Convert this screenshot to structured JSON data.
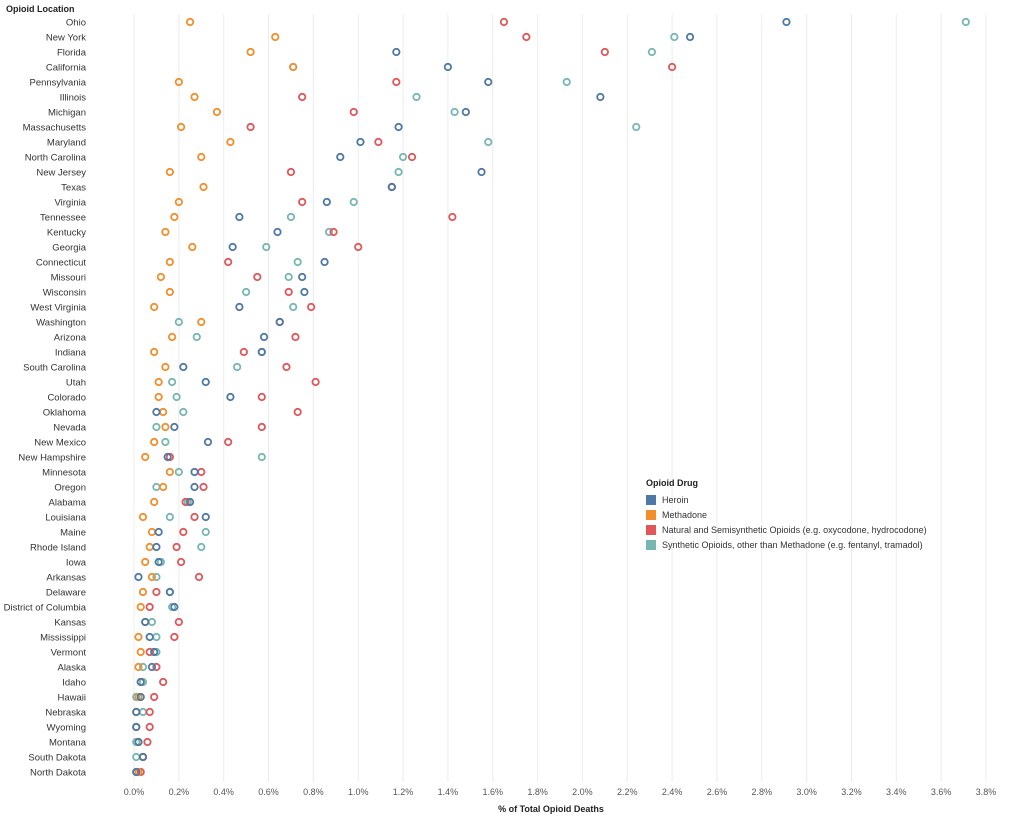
{
  "chart_data": {
    "type": "scatter",
    "row_header": "Opioid Location",
    "xlabel": "% of Total Opioid Deaths",
    "xlim": [
      0,
      3.8
    ],
    "x_ticks": [
      "0.0%",
      "0.2%",
      "0.4%",
      "0.6%",
      "0.8%",
      "1.0%",
      "1.2%",
      "1.4%",
      "1.6%",
      "1.8%",
      "2.0%",
      "2.2%",
      "2.4%",
      "2.6%",
      "2.8%",
      "3.0%",
      "3.2%",
      "3.4%",
      "3.6%",
      "3.8%"
    ],
    "grid": "vertical",
    "legend_title": "Opioid Drug",
    "series": [
      {
        "name": "Heroin",
        "color": "#4e79a7"
      },
      {
        "name": "Methadone",
        "color": "#f28e2b"
      },
      {
        "name": "Natural and Semisynthetic Opioids (e.g. oxycodone, hydrocodone)",
        "color": "#e15759"
      },
      {
        "name": "Synthetic Opioids, other than Methadone (e.g. fentanyl, tramadol)",
        "color": "#76b7b2"
      }
    ],
    "rows": [
      {
        "label": "Ohio",
        "values": [
          2.91,
          0.25,
          1.65,
          3.71
        ]
      },
      {
        "label": "New York",
        "values": [
          2.48,
          0.63,
          1.75,
          2.41
        ]
      },
      {
        "label": "Florida",
        "values": [
          1.17,
          0.52,
          2.1,
          2.31
        ]
      },
      {
        "label": "California",
        "values": [
          1.4,
          0.71,
          2.4,
          0.71
        ]
      },
      {
        "label": "Pennsylvania",
        "values": [
          1.58,
          0.2,
          1.17,
          1.93
        ]
      },
      {
        "label": "Illinois",
        "values": [
          2.08,
          0.27,
          0.75,
          1.26
        ]
      },
      {
        "label": "Michigan",
        "values": [
          1.48,
          0.37,
          0.98,
          1.43
        ]
      },
      {
        "label": "Massachusetts",
        "values": [
          1.18,
          0.21,
          0.52,
          2.24
        ]
      },
      {
        "label": "Maryland",
        "values": [
          1.01,
          0.43,
          1.09,
          1.58
        ]
      },
      {
        "label": "North Carolina",
        "values": [
          0.92,
          0.3,
          1.24,
          1.2
        ]
      },
      {
        "label": "New Jersey",
        "values": [
          1.55,
          0.16,
          0.7,
          1.18
        ]
      },
      {
        "label": "Texas",
        "values": [
          1.15,
          0.31,
          1.15,
          1.15
        ]
      },
      {
        "label": "Virginia",
        "values": [
          0.86,
          0.2,
          0.75,
          0.98
        ]
      },
      {
        "label": "Tennessee",
        "values": [
          0.47,
          0.18,
          1.42,
          0.7
        ]
      },
      {
        "label": "Kentucky",
        "values": [
          0.64,
          0.14,
          0.89,
          0.87
        ]
      },
      {
        "label": "Georgia",
        "values": [
          0.44,
          0.26,
          1.0,
          0.59
        ]
      },
      {
        "label": "Connecticut",
        "values": [
          0.85,
          0.16,
          0.42,
          0.73
        ]
      },
      {
        "label": "Missouri",
        "values": [
          0.75,
          0.12,
          0.55,
          0.69
        ]
      },
      {
        "label": "Wisconsin",
        "values": [
          0.76,
          0.16,
          0.69,
          0.5
        ]
      },
      {
        "label": "West Virginia",
        "values": [
          0.47,
          0.09,
          0.79,
          0.71
        ]
      },
      {
        "label": "Washington",
        "values": [
          0.65,
          0.3,
          0.65,
          0.2
        ]
      },
      {
        "label": "Arizona",
        "values": [
          0.58,
          0.17,
          0.72,
          0.28
        ]
      },
      {
        "label": "Indiana",
        "values": [
          0.57,
          0.09,
          0.49,
          0.57
        ]
      },
      {
        "label": "South Carolina",
        "values": [
          0.22,
          0.14,
          0.68,
          0.46
        ]
      },
      {
        "label": "Utah",
        "values": [
          0.32,
          0.11,
          0.81,
          0.17
        ]
      },
      {
        "label": "Colorado",
        "values": [
          0.43,
          0.11,
          0.57,
          0.19
        ]
      },
      {
        "label": "Oklahoma",
        "values": [
          0.1,
          0.13,
          0.73,
          0.22
        ]
      },
      {
        "label": "Nevada",
        "values": [
          0.18,
          0.14,
          0.57,
          0.1
        ]
      },
      {
        "label": "New Mexico",
        "values": [
          0.33,
          0.09,
          0.42,
          0.14
        ]
      },
      {
        "label": "New Hampshire",
        "values": [
          0.15,
          0.05,
          0.16,
          0.57
        ]
      },
      {
        "label": "Minnesota",
        "values": [
          0.27,
          0.16,
          0.3,
          0.2
        ]
      },
      {
        "label": "Oregon",
        "values": [
          0.27,
          0.13,
          0.31,
          0.1
        ]
      },
      {
        "label": "Alabama",
        "values": [
          0.25,
          0.09,
          0.23,
          0.24
        ]
      },
      {
        "label": "Louisiana",
        "values": [
          0.32,
          0.04,
          0.27,
          0.16
        ]
      },
      {
        "label": "Maine",
        "values": [
          0.11,
          0.08,
          0.22,
          0.32
        ]
      },
      {
        "label": "Rhode Island",
        "values": [
          0.1,
          0.07,
          0.19,
          0.3
        ]
      },
      {
        "label": "Iowa",
        "values": [
          0.11,
          0.05,
          0.21,
          0.12
        ]
      },
      {
        "label": "Arkansas",
        "values": [
          0.02,
          0.08,
          0.29,
          0.1
        ]
      },
      {
        "label": "Delaware",
        "values": [
          0.16,
          0.04,
          0.1,
          0.16
        ]
      },
      {
        "label": "District of Columbia",
        "values": [
          0.18,
          0.03,
          0.07,
          0.17
        ]
      },
      {
        "label": "Kansas",
        "values": [
          0.05,
          0.05,
          0.2,
          0.08
        ]
      },
      {
        "label": "Mississippi",
        "values": [
          0.07,
          0.02,
          0.18,
          0.1
        ]
      },
      {
        "label": "Vermont",
        "values": [
          0.09,
          0.03,
          0.07,
          0.1
        ]
      },
      {
        "label": "Alaska",
        "values": [
          0.08,
          0.02,
          0.1,
          0.04
        ]
      },
      {
        "label": "Idaho",
        "values": [
          0.03,
          0.03,
          0.13,
          0.04
        ]
      },
      {
        "label": "Hawaii",
        "values": [
          0.03,
          0.02,
          0.09,
          0.01
        ]
      },
      {
        "label": "Nebraska",
        "values": [
          0.01,
          0.01,
          0.07,
          0.04
        ]
      },
      {
        "label": "Wyoming",
        "values": [
          0.01,
          0.01,
          0.07,
          0.01
        ]
      },
      {
        "label": "Montana",
        "values": [
          0.02,
          0.02,
          0.06,
          0.01
        ]
      },
      {
        "label": "South Dakota",
        "values": [
          0.04,
          0.04,
          0.04,
          0.01
        ]
      },
      {
        "label": "North Dakota",
        "values": [
          0.01,
          0.02,
          0.03,
          0.01
        ]
      }
    ]
  }
}
